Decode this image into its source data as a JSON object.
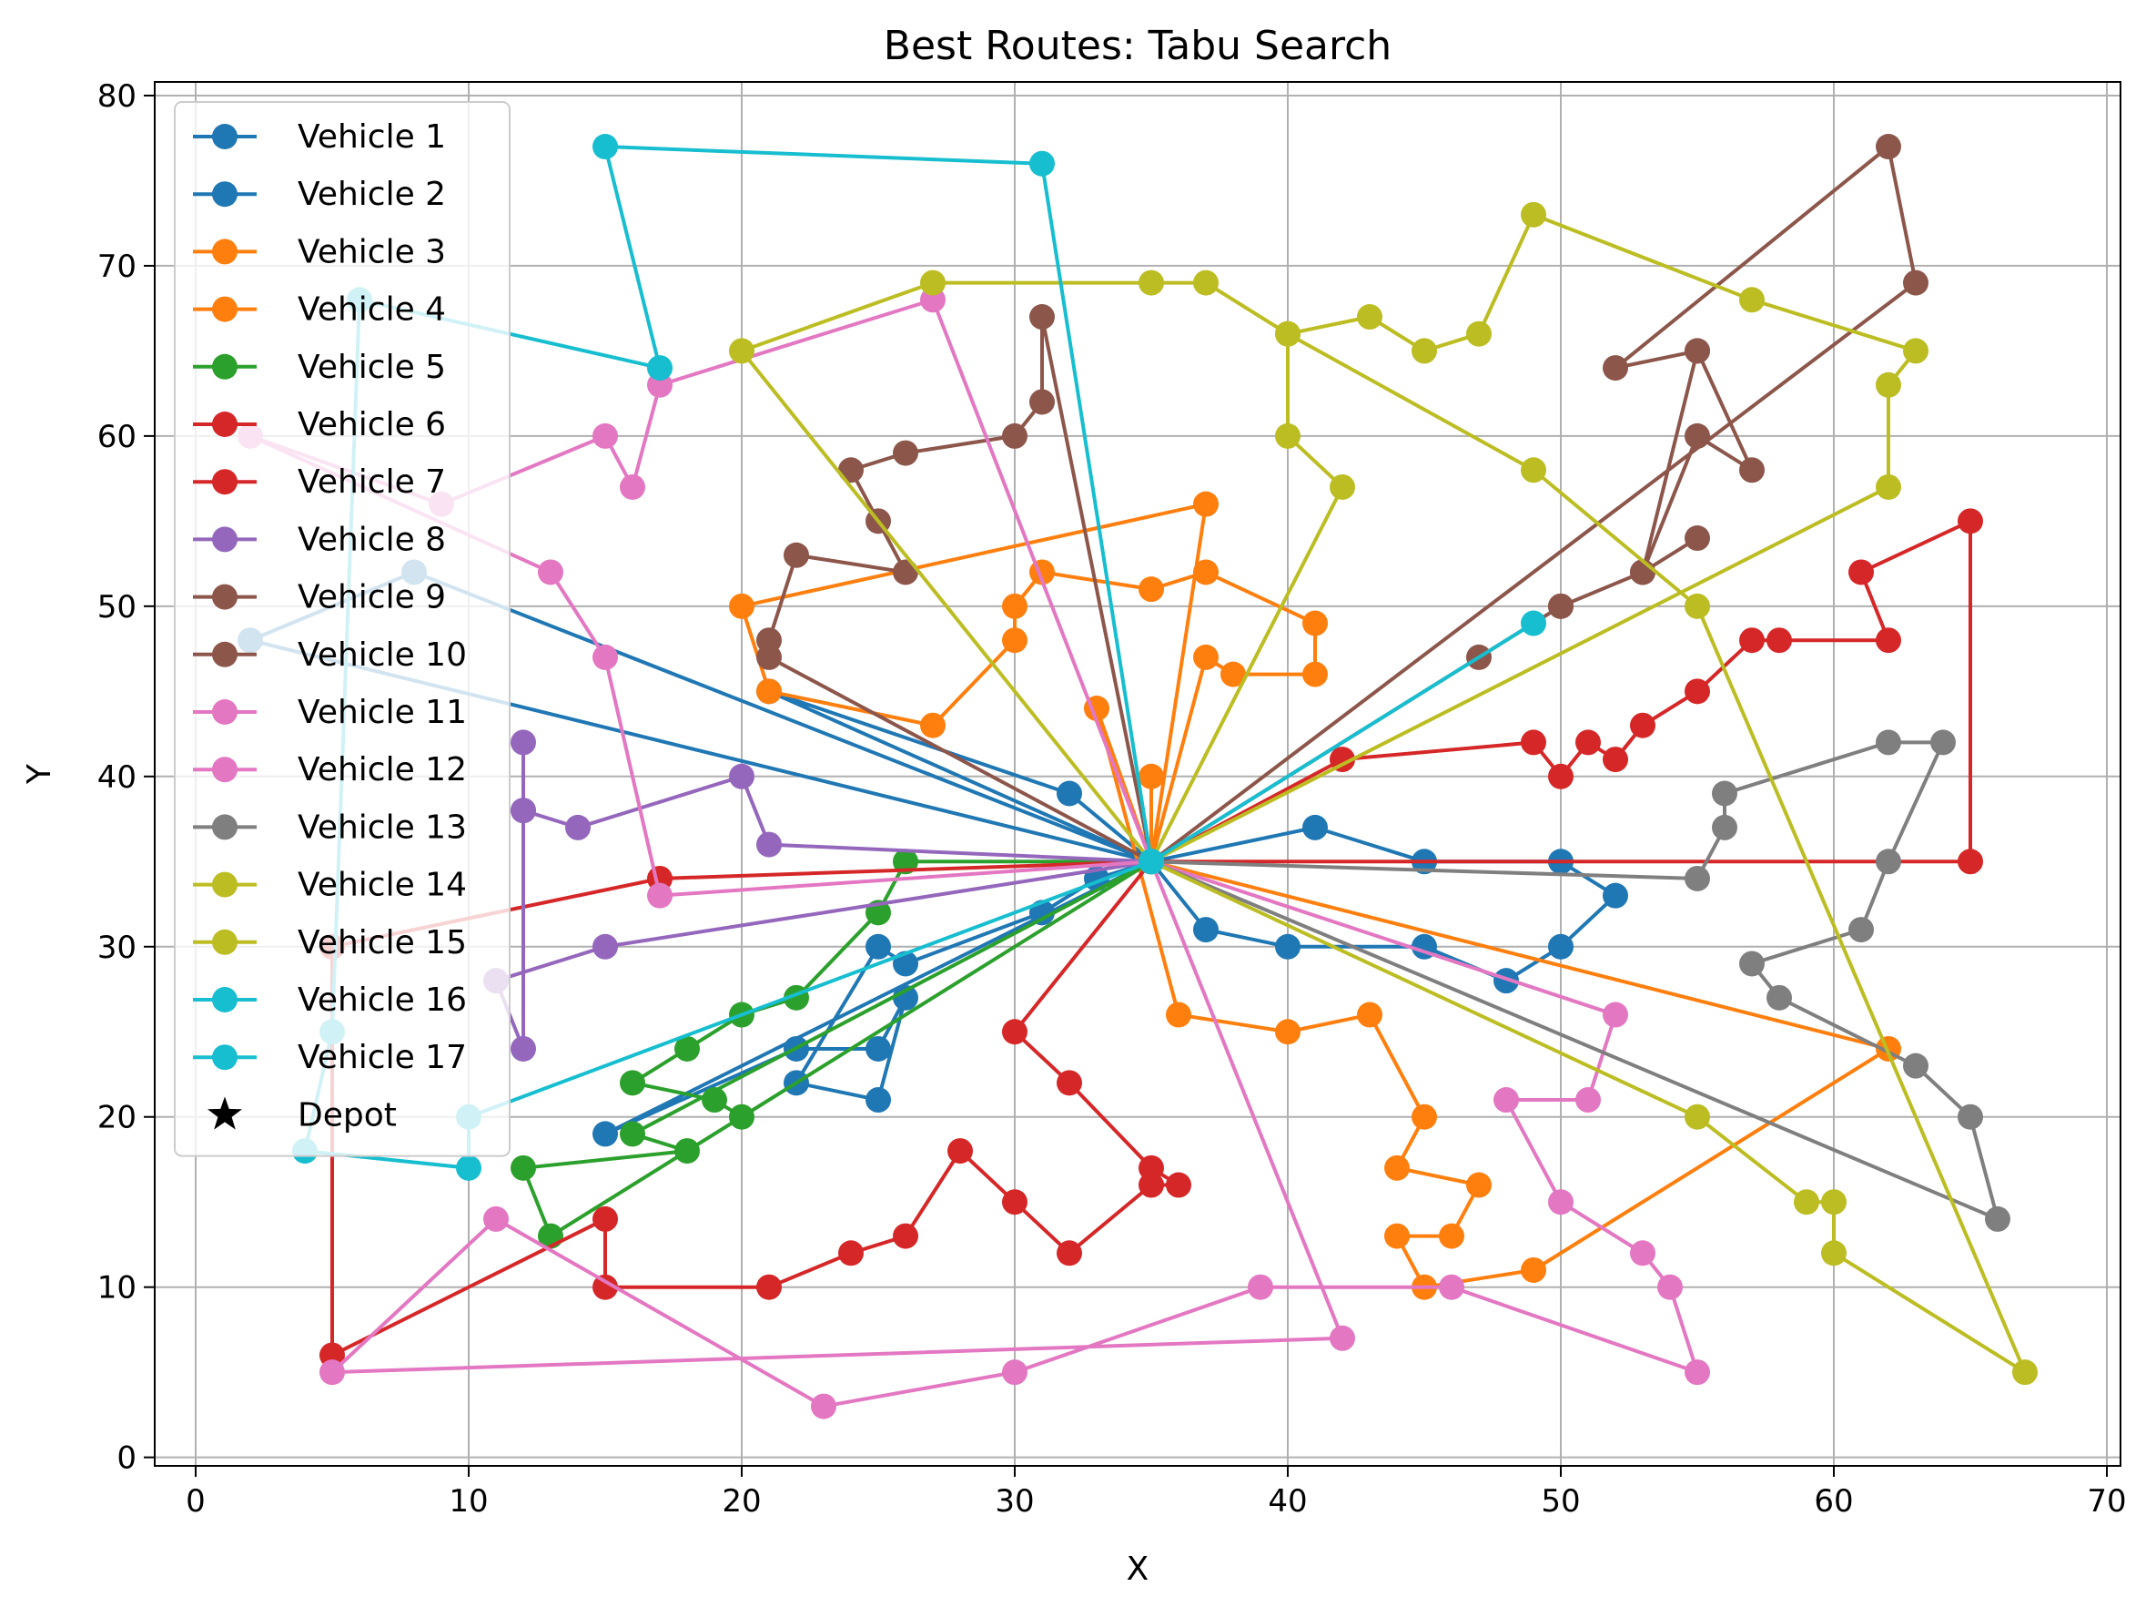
{
  "chart_data": {
    "type": "line",
    "title": "Best Routes: Tabu Search",
    "xlabel": "X",
    "ylabel": "Y",
    "xlim": [
      -1.5,
      70.5
    ],
    "ylim": [
      -0.5,
      80.8
    ],
    "xticks": [
      0,
      10,
      20,
      30,
      40,
      50,
      60,
      70
    ],
    "yticks": [
      0,
      10,
      20,
      30,
      40,
      50,
      60,
      70,
      80
    ],
    "grid": true,
    "legend_position": "upper-left",
    "depot": {
      "name": "Depot",
      "x": 35,
      "y": 35,
      "marker": "star"
    },
    "series": [
      {
        "name": "Vehicle 1",
        "color": "#1f77b4",
        "points": [
          [
            35,
            35
          ],
          [
            32,
            39
          ],
          [
            21,
            45
          ],
          [
            35,
            35
          ]
        ]
      },
      {
        "name": "Vehicle 2",
        "color": "#1f77b4",
        "points": [
          [
            35,
            35
          ],
          [
            41,
            37
          ],
          [
            45,
            35
          ],
          [
            50,
            35
          ],
          [
            52,
            33
          ],
          [
            50,
            30
          ],
          [
            48,
            28
          ],
          [
            45,
            30
          ],
          [
            40,
            30
          ],
          [
            37,
            31
          ],
          [
            35,
            35
          ],
          [
            33,
            34
          ],
          [
            31,
            32
          ],
          [
            26,
            29
          ],
          [
            25,
            30
          ],
          [
            22,
            22
          ],
          [
            25,
            21
          ],
          [
            26,
            27
          ],
          [
            25,
            24
          ],
          [
            22,
            24
          ],
          [
            15,
            19
          ],
          [
            35,
            35
          ],
          [
            8,
            52
          ],
          [
            2,
            48
          ],
          [
            35,
            35
          ]
        ]
      },
      {
        "name": "Vehicle 3",
        "color": "#ff7f0e",
        "points": [
          [
            35,
            35
          ],
          [
            37,
            47
          ],
          [
            38,
            46
          ],
          [
            41,
            46
          ],
          [
            41,
            49
          ],
          [
            37,
            52
          ],
          [
            35,
            51
          ],
          [
            31,
            52
          ],
          [
            30,
            50
          ],
          [
            30,
            48
          ],
          [
            27,
            43
          ],
          [
            21,
            45
          ],
          [
            20,
            50
          ],
          [
            37,
            56
          ],
          [
            35,
            35
          ]
        ]
      },
      {
        "name": "Vehicle 4",
        "color": "#ff7f0e",
        "points": [
          [
            35,
            35
          ],
          [
            33,
            44
          ],
          [
            36,
            26
          ],
          [
            40,
            25
          ],
          [
            43,
            26
          ],
          [
            45,
            20
          ],
          [
            44,
            17
          ],
          [
            47,
            16
          ],
          [
            46,
            13
          ],
          [
            44,
            13
          ],
          [
            45,
            10
          ],
          [
            49,
            11
          ],
          [
            62,
            24
          ],
          [
            35,
            35
          ],
          [
            35,
            40
          ]
        ]
      },
      {
        "name": "Vehicle 5",
        "color": "#2ca02c",
        "points": [
          [
            35,
            35
          ],
          [
            26,
            35
          ],
          [
            25,
            32
          ],
          [
            22,
            27
          ],
          [
            20,
            26
          ],
          [
            18,
            24
          ],
          [
            16,
            22
          ],
          [
            19,
            21
          ],
          [
            20,
            20
          ],
          [
            35,
            35
          ],
          [
            16,
            19
          ],
          [
            18,
            18
          ],
          [
            12,
            17
          ],
          [
            13,
            13
          ],
          [
            35,
            35
          ]
        ]
      },
      {
        "name": "Vehicle 6",
        "color": "#d62728",
        "points": [
          [
            35,
            35
          ],
          [
            30,
            25
          ],
          [
            32,
            22
          ],
          [
            35,
            17
          ],
          [
            36,
            16
          ],
          [
            35,
            16
          ],
          [
            32,
            12
          ],
          [
            30,
            15
          ],
          [
            28,
            18
          ],
          [
            26,
            13
          ],
          [
            24,
            12
          ],
          [
            21,
            10
          ],
          [
            15,
            10
          ],
          [
            15,
            14
          ],
          [
            5,
            6
          ],
          [
            5,
            30
          ],
          [
            17,
            34
          ],
          [
            35,
            35
          ]
        ]
      },
      {
        "name": "Vehicle 7",
        "color": "#d62728",
        "points": [
          [
            35,
            35
          ],
          [
            42,
            41
          ],
          [
            49,
            42
          ],
          [
            50,
            40
          ],
          [
            51,
            42
          ],
          [
            52,
            41
          ],
          [
            53,
            43
          ],
          [
            55,
            45
          ],
          [
            57,
            48
          ],
          [
            58,
            48
          ],
          [
            62,
            48
          ],
          [
            61,
            52
          ],
          [
            65,
            55
          ],
          [
            65,
            35
          ],
          [
            35,
            35
          ]
        ]
      },
      {
        "name": "Vehicle 8",
        "color": "#9467bd",
        "points": [
          [
            35,
            35
          ],
          [
            21,
            36
          ],
          [
            20,
            40
          ],
          [
            14,
            37
          ],
          [
            12,
            38
          ],
          [
            12,
            42
          ],
          [
            12,
            38
          ],
          [
            12,
            24
          ],
          [
            11,
            28
          ],
          [
            15,
            30
          ],
          [
            35,
            35
          ]
        ]
      },
      {
        "name": "Vehicle 9",
        "color": "#8c564b",
        "points": [
          [
            35,
            35
          ],
          [
            50,
            50
          ],
          [
            53,
            52
          ],
          [
            55,
            54
          ],
          [
            53,
            52
          ],
          [
            55,
            60
          ],
          [
            57,
            58
          ],
          [
            55,
            65
          ],
          [
            53,
            52
          ],
          [
            50,
            50
          ],
          [
            47,
            47
          ],
          [
            35,
            35
          ]
        ]
      },
      {
        "name": "Vehicle 10",
        "color": "#8c564b",
        "points": [
          [
            35,
            35
          ],
          [
            21,
            47
          ],
          [
            21,
            48
          ],
          [
            22,
            53
          ],
          [
            26,
            52
          ],
          [
            25,
            55
          ],
          [
            24,
            58
          ],
          [
            26,
            59
          ],
          [
            30,
            60
          ],
          [
            31,
            62
          ],
          [
            31,
            67
          ],
          [
            35,
            35
          ],
          [
            63,
            69
          ],
          [
            62,
            77
          ],
          [
            52,
            64
          ],
          [
            55,
            65
          ]
        ]
      },
      {
        "name": "Vehicle 11",
        "color": "#e377c2",
        "points": [
          [
            35,
            35
          ],
          [
            27,
            68
          ],
          [
            17,
            63
          ],
          [
            16,
            57
          ],
          [
            15,
            60
          ],
          [
            9,
            56
          ],
          [
            2,
            60
          ],
          [
            13,
            52
          ],
          [
            15,
            47
          ],
          [
            17,
            33
          ],
          [
            35,
            35
          ]
        ]
      },
      {
        "name": "Vehicle 12",
        "color": "#e377c2",
        "points": [
          [
            35,
            35
          ],
          [
            52,
            26
          ],
          [
            51,
            21
          ],
          [
            48,
            21
          ],
          [
            50,
            15
          ],
          [
            53,
            12
          ],
          [
            54,
            10
          ],
          [
            55,
            5
          ],
          [
            46,
            10
          ],
          [
            39,
            10
          ],
          [
            30,
            5
          ],
          [
            23,
            3
          ],
          [
            11,
            14
          ],
          [
            5,
            5
          ],
          [
            42,
            7
          ],
          [
            35,
            35
          ]
        ]
      },
      {
        "name": "Vehicle 13",
        "color": "#7f7f7f",
        "points": [
          [
            35,
            35
          ],
          [
            55,
            34
          ],
          [
            56,
            37
          ],
          [
            56,
            39
          ],
          [
            62,
            42
          ],
          [
            64,
            42
          ],
          [
            62,
            35
          ],
          [
            61,
            31
          ],
          [
            57,
            29
          ],
          [
            58,
            27
          ],
          [
            63,
            23
          ],
          [
            65,
            20
          ],
          [
            66,
            14
          ],
          [
            35,
            35
          ],
          [
            35,
            35
          ]
        ]
      },
      {
        "name": "Vehicle 14",
        "color": "#bcbd22",
        "points": [
          [
            35,
            35
          ],
          [
            42,
            57
          ],
          [
            40,
            60
          ],
          [
            40,
            66
          ],
          [
            43,
            67
          ],
          [
            45,
            65
          ],
          [
            47,
            66
          ],
          [
            49,
            73
          ],
          [
            57,
            68
          ],
          [
            63,
            65
          ],
          [
            62,
            63
          ],
          [
            62,
            57
          ],
          [
            35,
            35
          ]
        ]
      },
      {
        "name": "Vehicle 15",
        "color": "#bcbd22",
        "points": [
          [
            35,
            35
          ],
          [
            20,
            65
          ],
          [
            27,
            69
          ],
          [
            35,
            69
          ],
          [
            37,
            69
          ],
          [
            40,
            66
          ],
          [
            49,
            58
          ],
          [
            55,
            50
          ],
          [
            67,
            5
          ],
          [
            60,
            12
          ],
          [
            60,
            15
          ],
          [
            59,
            15
          ],
          [
            55,
            20
          ],
          [
            35,
            35
          ]
        ]
      },
      {
        "name": "Vehicle 16",
        "color": "#17becf",
        "points": [
          [
            35,
            35
          ],
          [
            31,
            76
          ],
          [
            15,
            77
          ],
          [
            17,
            64
          ],
          [
            6,
            68
          ],
          [
            5,
            25
          ],
          [
            4,
            18
          ],
          [
            10,
            17
          ],
          [
            10,
            20
          ],
          [
            35,
            35
          ]
        ]
      },
      {
        "name": "Vehicle 17",
        "color": "#17becf",
        "points": [
          [
            35,
            35
          ],
          [
            49,
            49
          ]
        ]
      }
    ]
  }
}
